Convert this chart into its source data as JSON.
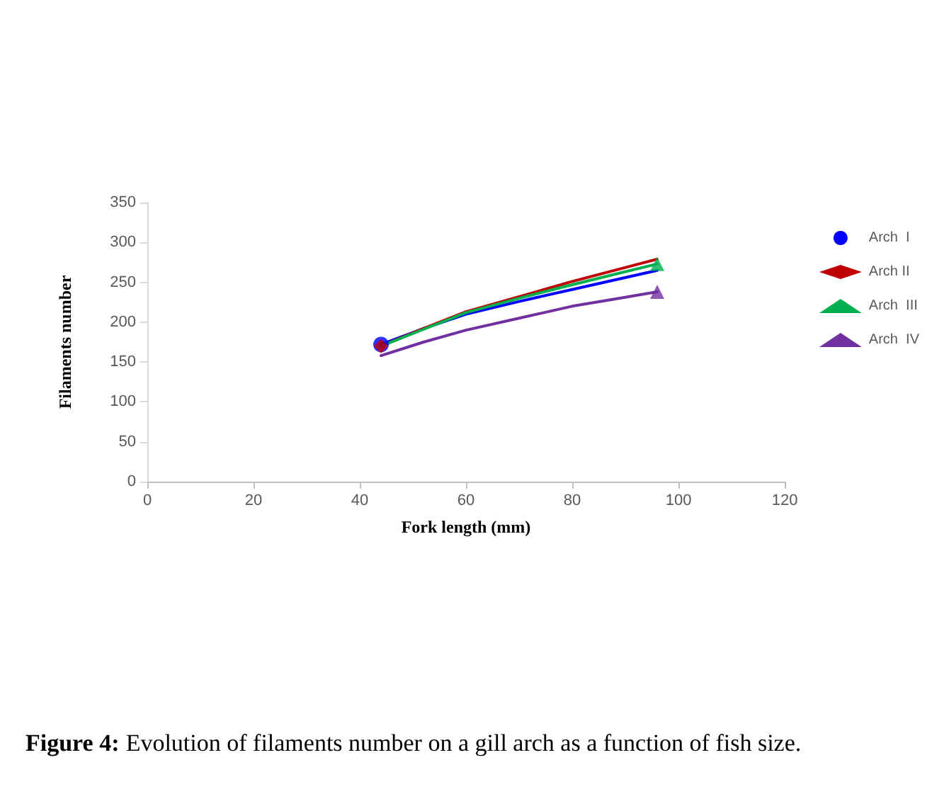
{
  "chart_data": {
    "type": "line",
    "xlabel": "Fork length (mm)",
    "ylabel": "Filaments number",
    "xlim": [
      0,
      120
    ],
    "xticks": [
      0,
      20,
      40,
      60,
      80,
      100,
      120
    ],
    "ylim": [
      0,
      350
    ],
    "yticks": [
      0,
      50,
      100,
      150,
      200,
      250,
      300,
      350
    ],
    "grid": false,
    "legend": "right",
    "line_style": "solid",
    "marker": "none",
    "series": [
      {
        "name": "Arch  I",
        "color": "#0000ff",
        "x": [
          44,
          52,
          60,
          70,
          80,
          88,
          96
        ],
        "values": [
          172,
          192,
          210,
          226,
          241,
          253,
          265
        ]
      },
      {
        "name": "Arch II",
        "color": "#c00000",
        "x": [
          44,
          52,
          60,
          70,
          80,
          88,
          96
        ],
        "values": [
          170,
          192,
          213,
          232,
          251,
          265,
          279
        ]
      },
      {
        "name": "Arch  III",
        "color": "#00b050",
        "x": [
          44,
          52,
          60,
          70,
          80,
          88,
          96
        ],
        "values": [
          170,
          191,
          212,
          230,
          247,
          260,
          273
        ]
      },
      {
        "name": "Arch  IV",
        "color": "#7030a0",
        "x": [
          44,
          52,
          60,
          70,
          80,
          88,
          96
        ],
        "values": [
          158,
          175,
          190,
          205,
          220,
          229,
          238
        ]
      },
      {
        "type": "scatter",
        "color": "#0000ff",
        "marker": "circle",
        "x": [
          44
        ],
        "values": [
          172
        ]
      },
      {
        "type": "scatter",
        "color": "#c00000",
        "marker": "diamond",
        "x": [
          44
        ],
        "values": [
          170
        ]
      },
      {
        "type": "scatter",
        "color": "#00b050",
        "marker": "triangle",
        "x": [
          96
        ],
        "values": [
          273
        ]
      },
      {
        "type": "scatter",
        "color": "#7030a0",
        "marker": "triangle",
        "x": [
          96
        ],
        "values": [
          238
        ]
      }
    ],
    "annotations": [
      "Figure 4: Evolution of filaments number on a gill arch as a function of fish size."
    ]
  }
}
